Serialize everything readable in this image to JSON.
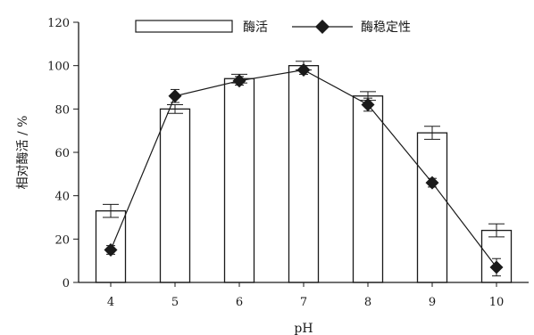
{
  "chart_data": {
    "type": "bar",
    "title": "",
    "xlabel": "pH",
    "ylabel": "相对酶活 / %",
    "ylim": [
      0,
      120
    ],
    "y_ticks": [
      0,
      20,
      40,
      60,
      80,
      100,
      120
    ],
    "categories": [
      "4",
      "5",
      "6",
      "7",
      "8",
      "9",
      "10"
    ],
    "grid": false,
    "legend_position": "top",
    "series": [
      {
        "name": "酶活",
        "kind": "bar",
        "values": [
          33,
          80,
          94,
          100,
          86,
          69,
          24
        ],
        "errors": [
          3,
          2,
          2,
          2,
          2,
          3,
          3
        ],
        "color": "#ffffff",
        "stroke": "#1a1a1a"
      },
      {
        "name": "酶稳定性",
        "kind": "line",
        "marker": "diamond",
        "values": [
          15,
          86,
          93,
          98,
          82,
          46,
          7
        ],
        "errors": [
          2,
          3,
          2,
          2,
          3,
          2,
          4
        ],
        "color": "#1a1a1a"
      }
    ]
  }
}
